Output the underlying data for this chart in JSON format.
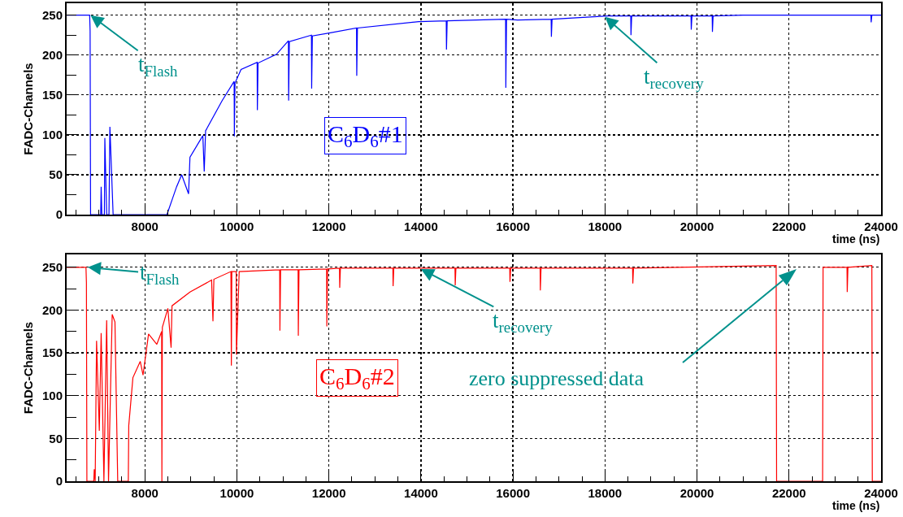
{
  "chart_data": [
    {
      "type": "line",
      "xlabel": "time (ns)",
      "ylabel": "FADC-Channels",
      "xlim": [
        6300,
        24000
      ],
      "ylim": [
        0,
        265
      ],
      "xticks": [
        8000,
        10000,
        12000,
        14000,
        16000,
        18000,
        20000,
        22000,
        24000
      ],
      "yticks": [
        0,
        50,
        100,
        150,
        200,
        250
      ],
      "grid": true,
      "x": [
        6300,
        6800,
        6810,
        6820,
        7040,
        7050,
        7065,
        7120,
        7130,
        7170,
        7220,
        7240,
        7310,
        8480,
        8600,
        8690,
        8800,
        8950,
        8980,
        9260,
        9290,
        9320,
        9680,
        9940,
        9945,
        9960,
        10090,
        10440,
        10445,
        10460,
        10860,
        11120,
        11125,
        11140,
        11620,
        11625,
        11640,
        12030,
        12600,
        12605,
        12620,
        13950,
        14550,
        14555,
        14570,
        15840,
        15845,
        15860,
        16100,
        16830,
        16835,
        16850,
        18060,
        18560,
        18565,
        18580,
        19870,
        19875,
        19890,
        20330,
        20335,
        20350,
        21000,
        23780,
        23785,
        23800,
        24000
      ],
      "series": [
        {
          "name": "C$_{6}$D$_{6}$#1",
          "color": "#0000ff",
          "values": [
            250,
            250,
            230,
            0,
            0,
            35,
            0,
            0,
            96,
            0,
            0,
            110,
            0,
            0,
            20,
            35,
            50,
            26,
            72,
            99,
            54,
            105,
            143,
            167,
            98,
            165,
            182,
            191,
            131,
            190,
            201,
            218,
            143,
            217,
            225,
            158,
            224,
            228,
            234,
            174,
            234,
            242,
            243,
            207,
            243,
            245,
            159,
            245,
            244,
            245,
            223,
            245,
            249,
            249,
            225,
            249,
            249,
            232,
            249,
            249,
            229,
            249,
            250,
            250,
            241,
            250,
            250
          ]
        }
      ],
      "annotations": [
        {
          "text": "t$_{Flash}$",
          "x": 6820,
          "y": 250
        },
        {
          "text": "t$_{recovery}$",
          "x": 18000,
          "y": 248
        }
      ]
    },
    {
      "type": "line",
      "xlabel": "time (ns)",
      "ylabel": "FADC-Channels",
      "xlim": [
        6300,
        24000
      ],
      "ylim": [
        0,
        265
      ],
      "xticks": [
        8000,
        10000,
        12000,
        14000,
        16000,
        18000,
        20000,
        22000,
        24000
      ],
      "yticks": [
        0,
        50,
        100,
        150,
        200,
        250
      ],
      "grid": true,
      "x": [
        6300,
        6720,
        6730,
        6740,
        6890,
        6900,
        6920,
        6950,
        7010,
        7050,
        7110,
        7170,
        7210,
        7290,
        7350,
        7410,
        7640,
        7650,
        7740,
        7900,
        7960,
        8080,
        8260,
        8365,
        8370,
        8380,
        8500,
        8570,
        8590,
        8980,
        9450,
        9480,
        9500,
        9870,
        9880,
        9890,
        9985,
        9990,
        10050,
        10930,
        10935,
        10950,
        11330,
        11335,
        11350,
        11950,
        11955,
        11970,
        12230,
        12235,
        12250,
        13390,
        13395,
        13410,
        14740,
        14745,
        14760,
        15930,
        15935,
        15950,
        16590,
        16595,
        16610,
        18600,
        18605,
        18620,
        21720,
        21730,
        22730,
        22740,
        23260,
        23265,
        23280,
        23800,
        23810,
        24000
      ],
      "series": [
        {
          "name": "C$_{6}$D$_{6}$#2",
          "color": "#ff0000",
          "values": [
            250,
            250,
            232,
            0,
            0,
            14,
            0,
            164,
            59,
            173,
            0,
            188,
            0,
            195,
            186,
            0,
            0,
            65,
            121,
            140,
            124,
            172,
            160,
            175,
            0,
            180,
            202,
            156,
            205,
            221,
            235,
            187,
            236,
            245,
            135,
            245,
            245,
            148,
            245,
            247,
            176,
            247,
            247,
            170,
            247,
            248,
            181,
            248,
            249,
            226,
            249,
            249,
            228,
            249,
            249,
            229,
            249,
            249,
            233,
            249,
            249,
            223,
            249,
            249,
            231,
            249,
            252,
            0,
            0,
            250,
            250,
            221,
            250,
            252,
            0,
            0
          ]
        }
      ],
      "annotations": [
        {
          "text": "t$_{Flash}$",
          "x": 6760,
          "y": 250
        },
        {
          "text": "t$_{recovery}$",
          "x": 14000,
          "y": 248
        },
        "zero suppressed data"
      ]
    }
  ]
}
